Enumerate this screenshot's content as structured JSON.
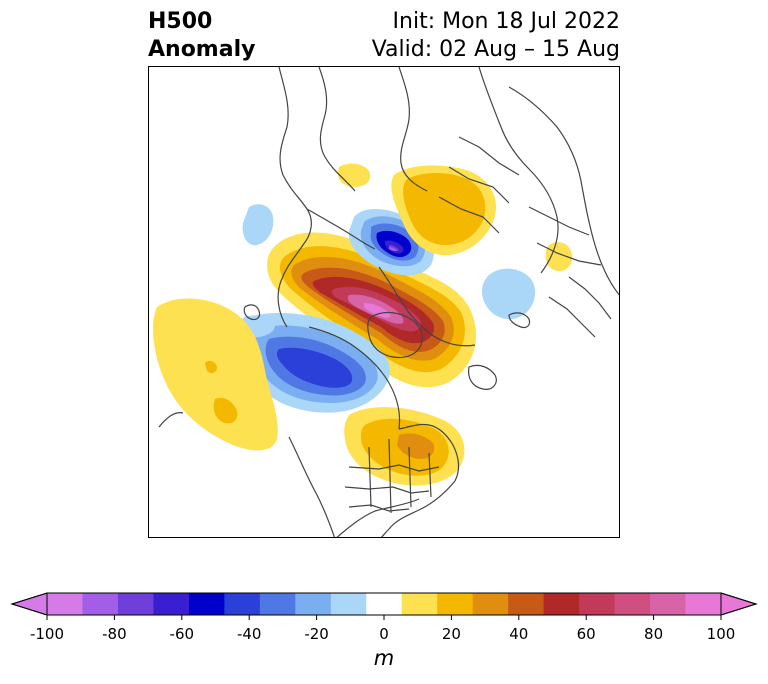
{
  "title": {
    "left_line1": "H500",
    "left_line2": "Anomaly",
    "right_line1": "Init: Mon 18 Jul 2022",
    "right_line2": "Valid: 02 Aug – 15 Aug"
  },
  "colorbar": {
    "unit": "m",
    "levels": [
      -100,
      -90,
      -80,
      -70,
      -60,
      -50,
      -40,
      -30,
      -20,
      -10,
      10,
      20,
      30,
      40,
      50,
      60,
      70,
      80,
      90,
      100
    ],
    "colors": [
      "#d57be8",
      "#a25ee6",
      "#6f3fdc",
      "#3a1fd0",
      "#0000cc",
      "#2a40d8",
      "#5078e4",
      "#7aaef0",
      "#aad6f8",
      "#ffffff",
      "#fde150",
      "#f4b800",
      "#e08e10",
      "#c85a18",
      "#b02828",
      "#c23a5a",
      "#cf4f80",
      "#d864a8",
      "#e878d8"
    ],
    "tick_values": [
      -100,
      -80,
      -60,
      -40,
      -20,
      0,
      20,
      40,
      60,
      80,
      100
    ]
  },
  "colors": {
    "coastline": "#444444",
    "frame": "#000000"
  }
}
